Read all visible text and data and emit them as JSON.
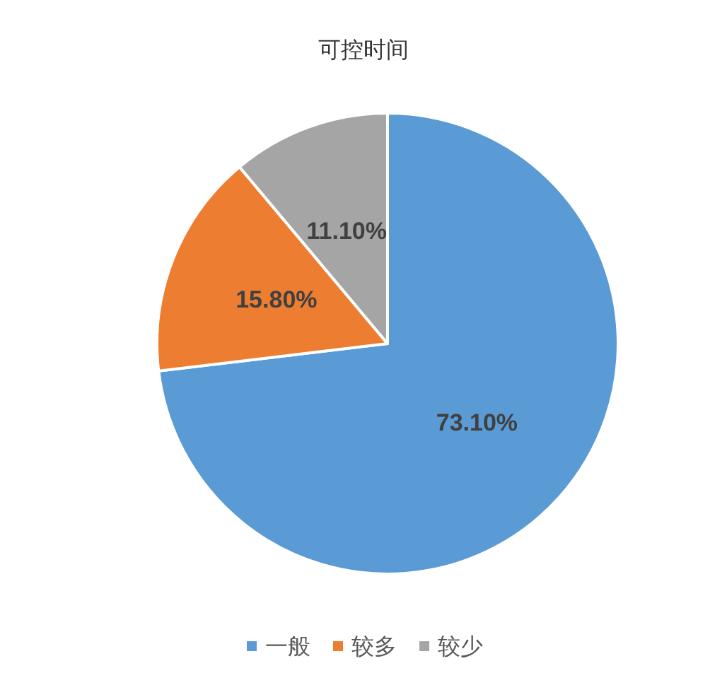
{
  "chart_data": {
    "type": "pie",
    "title": "可控时间",
    "categories": [
      "一般",
      "较多",
      "较少"
    ],
    "values": [
      73.1,
      15.8,
      11.1
    ],
    "colors": [
      "#5b9bd5",
      "#ed7d31",
      "#a5a5a5"
    ],
    "value_labels": [
      "73.10%",
      "15.80%",
      "11.10%"
    ],
    "legend": "bottom"
  }
}
